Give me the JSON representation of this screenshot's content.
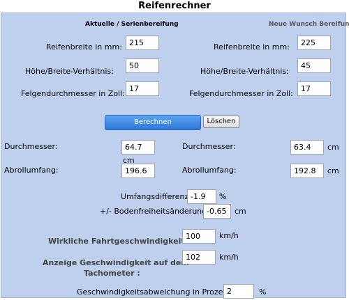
{
  "app": {
    "title": "Reifenrechner"
  },
  "headers": {
    "current": "Aktuelle / Serienbereifung",
    "new": "Neue Wunsch Bereifung"
  },
  "inputs_current": {
    "width_label": "Reifenbreite in mm:",
    "width_value": "215",
    "ratio_label": "Höhe/Breite-Verhältnis:",
    "ratio_value": "50",
    "rim_label": "Felgendurchmesser in Zoll:",
    "rim_value": "17"
  },
  "inputs_new": {
    "width_label": "Reifenbreite in mm:",
    "width_value": "225",
    "ratio_label": "Höhe/Breite-Verhältnis:",
    "ratio_value": "45",
    "rim_label": "Felgendurchmesser in Zoll:",
    "rim_value": "17"
  },
  "buttons": {
    "calculate": "Berechnen",
    "clear": "Löschen"
  },
  "results_current": {
    "diameter_label": "Durchmesser:",
    "diameter_value": "64.7",
    "diameter_unit": "cm",
    "circumference_label": "Abrollumfang:",
    "circumference_value": "196.6",
    "circumference_unit": "cm"
  },
  "results_new": {
    "diameter_label": "Durchmesser:",
    "diameter_value": "63.4",
    "diameter_unit": "cm",
    "circumference_label": "Abrollumfang:",
    "circumference_value": "192.8",
    "circumference_unit": "cm"
  },
  "differences": {
    "circumference_label": "Umfangsdifferenz:",
    "circumference_value": "-1.9",
    "circumference_unit": "%",
    "clearance_label": "+/- Bodenfreiheitsänderung:",
    "clearance_value": "-0.65",
    "clearance_unit": "cm"
  },
  "speed": {
    "actual_label": "Wirkliche Fahrtgeschwindigkeit :",
    "actual_value": "100",
    "actual_unit": "km/h",
    "display_label_line1": "Anzeige Geschwindigkeit auf dem",
    "display_label_line2": "Tachometer :",
    "display_value": "102",
    "display_unit": "km/h",
    "deviation_label": "Geschwindigkeitsabweichung in Prozent:",
    "deviation_value": "2",
    "deviation_unit": "%"
  }
}
